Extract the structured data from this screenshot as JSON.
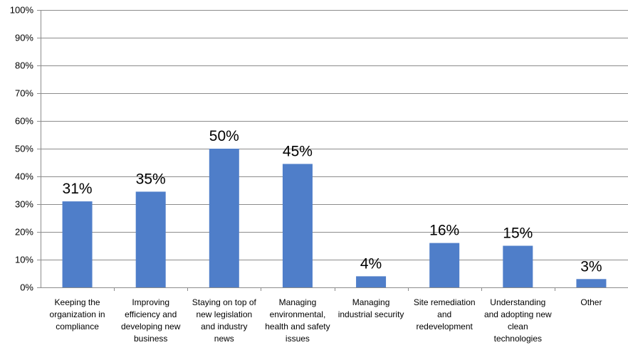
{
  "chart_data": {
    "type": "bar",
    "title": "",
    "xlabel": "",
    "ylabel": "",
    "ylim": [
      0,
      100
    ],
    "yticks": [
      "0%",
      "10%",
      "20%",
      "30%",
      "40%",
      "50%",
      "60%",
      "70%",
      "80%",
      "90%",
      "100%"
    ],
    "grid": true,
    "bar_color": "#4F7EC9",
    "categories": [
      [
        "Keeping the",
        "organization in",
        "compliance"
      ],
      [
        "Improving",
        "efficiency and",
        "developing new",
        "business"
      ],
      [
        "Staying on top of",
        "new legislation",
        "and industry",
        "news"
      ],
      [
        "Managing",
        "environmental,",
        "health and safety",
        "issues"
      ],
      [
        "Managing",
        "industrial security"
      ],
      [
        "Site remediation",
        "and",
        "redevelopment"
      ],
      [
        "Understanding",
        "and adopting new",
        "clean",
        "technologies"
      ],
      [
        "Other"
      ]
    ],
    "values": [
      31,
      34.5,
      50,
      44.5,
      4,
      16,
      15,
      3
    ],
    "data_labels": [
      "31%",
      "35%",
      "50%",
      "45%",
      "4%",
      "16%",
      "15%",
      "3%"
    ]
  }
}
